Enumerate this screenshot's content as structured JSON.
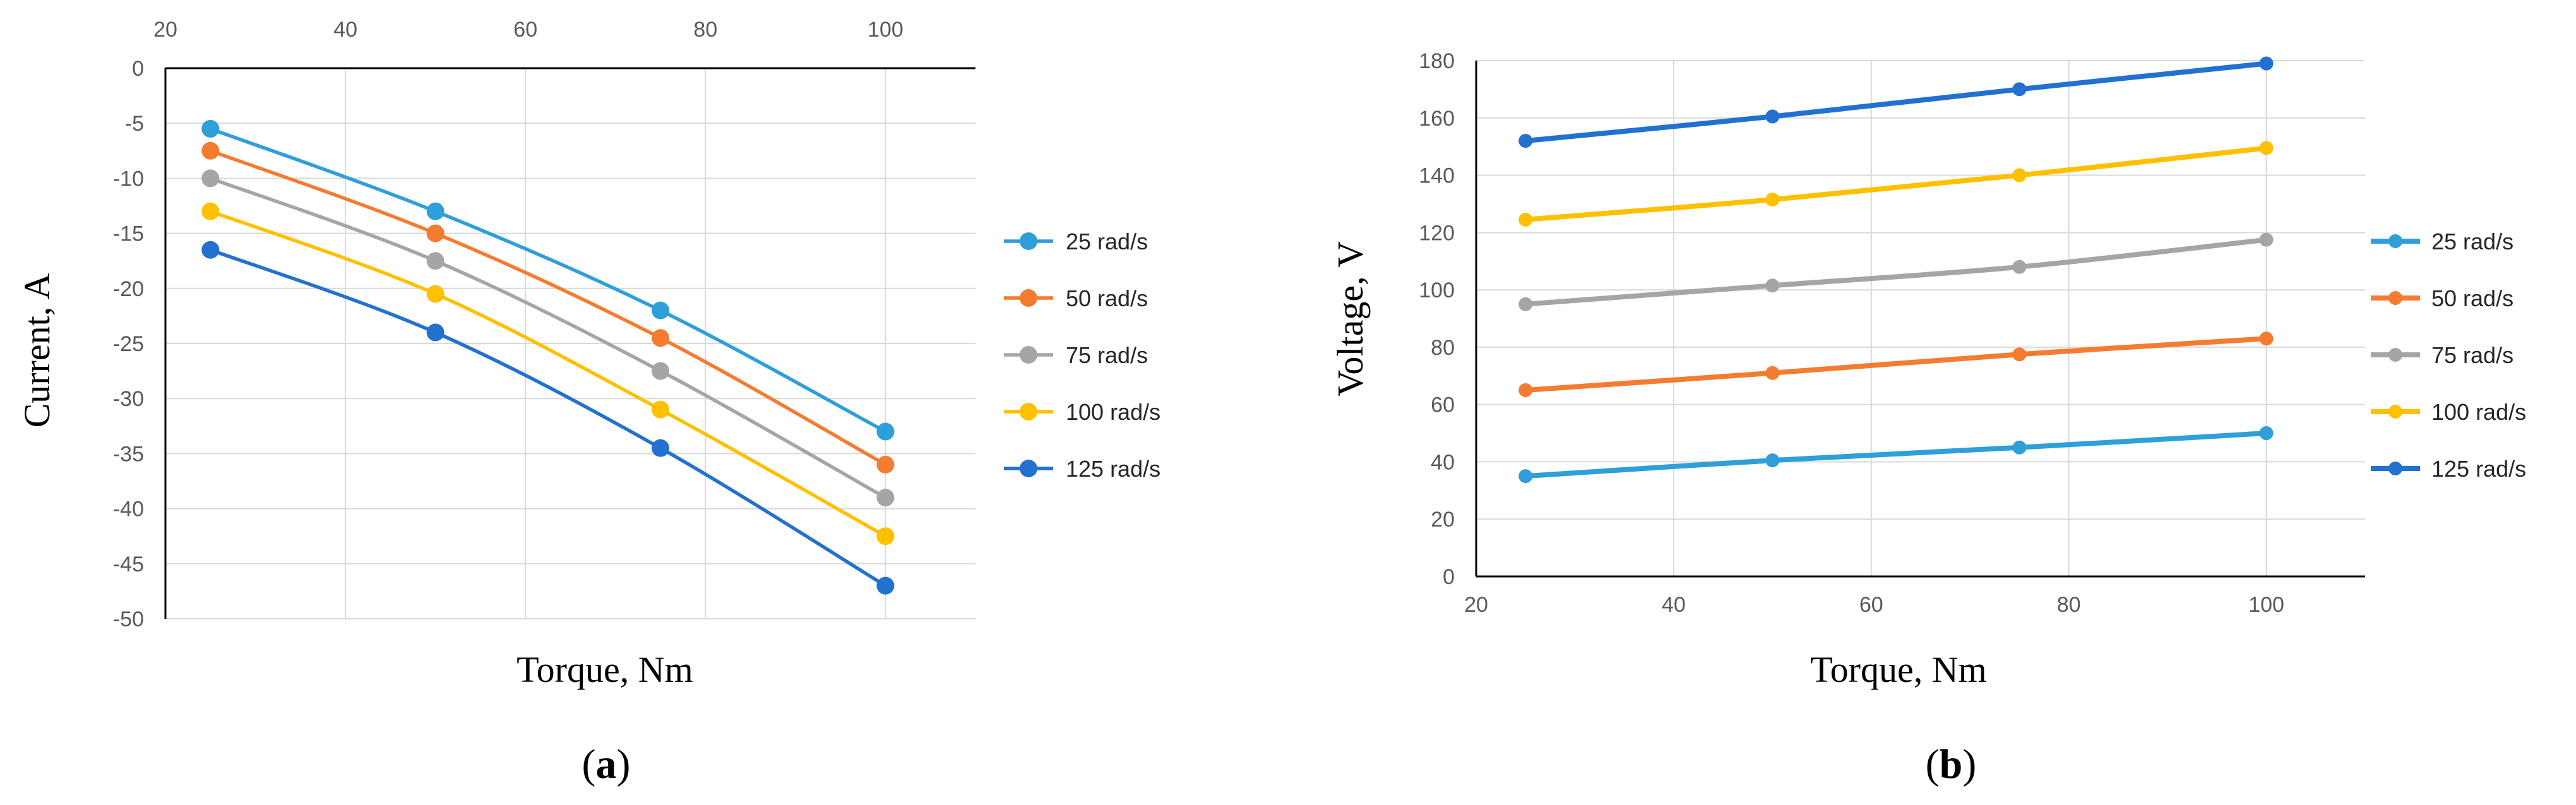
{
  "chart_data": [
    {
      "id": "a",
      "type": "line",
      "panel_label": "a",
      "xlabel": "Torque, Nm",
      "ylabel": "Current, A",
      "xlim": [
        20,
        110
      ],
      "ylim": [
        -50,
        0
      ],
      "x_ticks": [
        20,
        40,
        60,
        80,
        100
      ],
      "y_ticks": [
        0,
        -5,
        -10,
        -15,
        -20,
        -25,
        -30,
        -35,
        -40,
        -45,
        -50
      ],
      "x_axis_position": "top",
      "grid": true,
      "legend_position": "right",
      "x": [
        25,
        50,
        75,
        100
      ],
      "series": [
        {
          "name": "25 rad/s",
          "color": "#2E9FD9",
          "values": [
            -5.5,
            -13,
            -22,
            -33
          ]
        },
        {
          "name": "50 rad/s",
          "color": "#F47C30",
          "values": [
            -7.5,
            -15,
            -24.5,
            -36
          ]
        },
        {
          "name": "75 rad/s",
          "color": "#A5A5A5",
          "values": [
            -10,
            -17.5,
            -27.5,
            -39
          ]
        },
        {
          "name": "100 rad/s",
          "color": "#FFC000",
          "values": [
            -13,
            -20.5,
            -31,
            -42.5
          ]
        },
        {
          "name": "125 rad/s",
          "color": "#2271D0",
          "values": [
            -16.5,
            -24,
            -34.5,
            -47
          ]
        }
      ]
    },
    {
      "id": "b",
      "type": "line",
      "panel_label": "b",
      "xlabel": "Torque, Nm",
      "ylabel": "Voltage, V",
      "xlim": [
        20,
        110
      ],
      "ylim": [
        0,
        180
      ],
      "x_ticks": [
        20,
        40,
        60,
        80,
        100
      ],
      "y_ticks": [
        0,
        20,
        40,
        60,
        80,
        100,
        120,
        140,
        160,
        180
      ],
      "x_axis_position": "bottom",
      "grid": true,
      "legend_position": "right",
      "x": [
        25,
        50,
        75,
        100
      ],
      "series": [
        {
          "name": "25 rad/s",
          "color": "#2E9FD9",
          "values": [
            35,
            40.5,
            45,
            50
          ]
        },
        {
          "name": "50 rad/s",
          "color": "#F47C30",
          "values": [
            65,
            71,
            77.5,
            83
          ]
        },
        {
          "name": "75 rad/s",
          "color": "#A5A5A5",
          "values": [
            95,
            101.5,
            108,
            117.5
          ]
        },
        {
          "name": "100 rad/s",
          "color": "#FFC000",
          "values": [
            124.5,
            131.5,
            140,
            149.5
          ]
        },
        {
          "name": "125 rad/s",
          "color": "#2271D0",
          "values": [
            152,
            160.5,
            170,
            179
          ]
        }
      ]
    }
  ]
}
